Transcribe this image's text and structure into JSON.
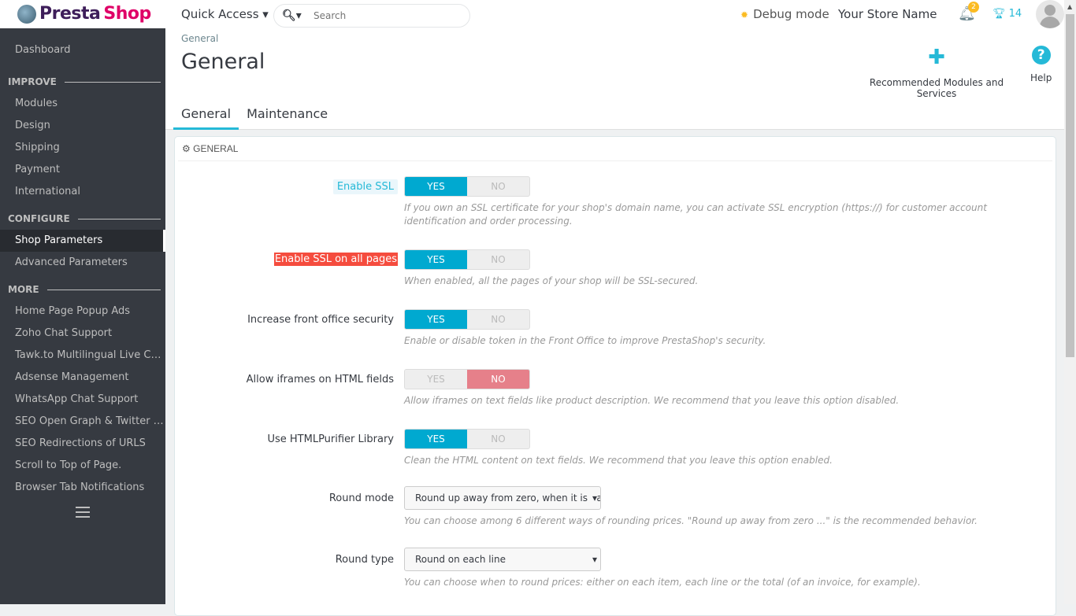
{
  "topbar": {
    "logo": "PrestaShop",
    "logo_a": "Presta",
    "logo_b": "Shop",
    "quick_access": "Quick Access ▾",
    "search_placeholder": "Search",
    "debug": "Debug mode",
    "store": "Your Store Name",
    "notifications": "2",
    "trophy": "14"
  },
  "sidebar": {
    "dashboard": "Dashboard",
    "improve": "IMPROVE",
    "improve_items": [
      "Modules",
      "Design",
      "Shipping",
      "Payment",
      "International"
    ],
    "configure": "CONFIGURE",
    "configure_items": [
      "Shop Parameters",
      "Advanced Parameters"
    ],
    "more": "MORE",
    "more_items": [
      "Home Page Popup Ads",
      "Zoho Chat Support",
      "Tawk.to Multilingual Live Chat Support",
      "Adsense Management",
      "WhatsApp Chat Support",
      "SEO Open Graph & Twitter Cards",
      "SEO Redirections of URLS",
      "Scroll to Top of Page.",
      "Browser Tab Notifications"
    ]
  },
  "header": {
    "breadcrumb": "General",
    "title": "General",
    "recommended": "Recommended Modules and Services",
    "help": "Help",
    "tabs": [
      "General",
      "Maintenance"
    ]
  },
  "panel": {
    "title": "GENERAL",
    "yes": "YES",
    "no": "NO",
    "rows": [
      {
        "label": "Enable SSL",
        "value": "YES",
        "help": "If you own an SSL certificate for your shop's domain name, you can activate SSL encryption (https://) for customer account identification and order processing."
      },
      {
        "label": "Enable SSL on all pages",
        "value": "YES",
        "help": "When enabled, all the pages of your shop will be SSL-secured."
      },
      {
        "label": "Increase front office security",
        "value": "YES",
        "help": "Enable or disable token in the Front Office to improve PrestaShop's security."
      },
      {
        "label": "Allow iframes on HTML fields",
        "value": "NO",
        "help": "Allow iframes on text fields like product description. We recommend that you leave this option disabled."
      },
      {
        "label": "Use HTMLPurifier Library",
        "value": "YES",
        "help": "Clean the HTML content on text fields. We recommend that you leave this option enabled."
      },
      {
        "label": "Round mode",
        "value": "Round up away from zero, when it is half way there (recommended)",
        "help": "You can choose among 6 different ways of rounding prices. \"Round up away from zero ...\" is the recommended behavior."
      },
      {
        "label": "Round type",
        "value": "Round on each line",
        "help": "You can choose when to round prices: either on each item, each line or the total (of an invoice, for example)."
      }
    ]
  },
  "colors": {
    "accent": "#25b9d7",
    "sidebar": "#363a41",
    "error": "#f54c3e",
    "no_active": "#e6808a"
  }
}
